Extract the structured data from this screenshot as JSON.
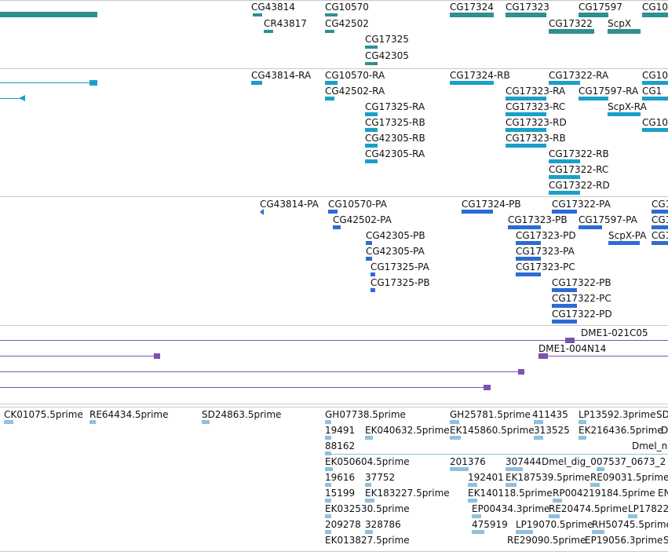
{
  "colors": {
    "gene": "#2e9090",
    "transcript": "#1aa0c8",
    "protein": "#2c6bd4",
    "clone": "#7b54b0",
    "est": "#8fc0dd"
  },
  "gene_track": {
    "labels": [
      "CG43814",
      "CR43817",
      "CG10570",
      "CG42502",
      "CG17325",
      "CG42305",
      "CG17324",
      "CG17323",
      "CG17322",
      "CG17597",
      "ScpX",
      "CG10"
    ]
  },
  "transcript_track": {
    "labels": [
      "CG43814-RA",
      "CG10570-RA",
      "CG42502-RA",
      "CG17325-RA",
      "CG17325-RB",
      "CG42305-RB",
      "CG42305-RA",
      "CG17324-RB",
      "CG17323-RA",
      "CG17323-RC",
      "CG17323-RD",
      "CG17323-RB",
      "CG17322-RA",
      "CG17597-RA",
      "ScpX-RA",
      "CG17322-RB",
      "CG17322-RC",
      "CG17322-RD",
      "CG10",
      "CG1",
      "CG10"
    ]
  },
  "protein_track": {
    "labels": [
      "CG43814-PA",
      "CG10570-PA",
      "CG42502-PA",
      "CG42305-PB",
      "CG42305-PA",
      "CG17325-PA",
      "CG17325-PB",
      "CG17324-PB",
      "CG17323-PB",
      "CG17323-PD",
      "CG17323-PA",
      "CG17323-PC",
      "CG17322-PA",
      "CG17597-PA",
      "ScpX-PA",
      "CG17322-PB",
      "CG17322-PC",
      "CG17322-PD",
      "CG1",
      "CG1",
      "CG1"
    ]
  },
  "clone_track": {
    "labels": [
      "DME1-021C05",
      "DME1-004N14"
    ]
  },
  "est_track": {
    "labels": [
      "CK01075.5prime",
      "RE64434.5prime",
      "SD24863.5prime",
      "GH07738.5prime",
      "GH25781.5prime",
      "411435",
      "LP13592.3prime",
      "SD",
      "19491",
      "EK040632.5prime",
      "EK145860.5prime",
      "313525",
      "EK216436.5prime",
      "Dm",
      "88162",
      "Dmel_ne",
      "EK050604.5prime",
      "201376",
      "307444",
      "Dmel_dig_007537_0673_2",
      "19616",
      "37752",
      "192401",
      "EK187539.5prime",
      "RE09031.5prime",
      "15199",
      "EK183227.5prime",
      "EK140118.5prime",
      "RP004219184.5prime",
      "EN",
      "EK032530.5prime",
      "EP00434.3prime",
      "RE20474.5prime",
      "LP17822",
      "209278",
      "328786",
      "475919",
      "LP19070.5prime",
      "RH50745.5prime",
      "EK013827.5prime",
      "RE29090.5prime",
      "EP19056.3prime",
      "S"
    ]
  }
}
